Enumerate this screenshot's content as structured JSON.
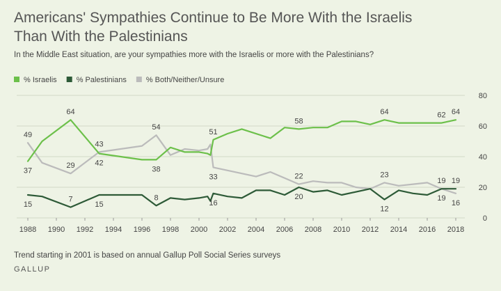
{
  "header": {
    "title_line1": "Americans' Sympathies Continue to Be More With the Israelis",
    "title_line2": "Than With the Palestinians",
    "subtitle": "In the Middle East situation, are your sympathies more with the Israelis or more with the Palestinians?"
  },
  "footer": {
    "note": "Trend starting in 2001 is based on annual Gallup Poll Social Series surveys",
    "brand": "GALLUP"
  },
  "colors": {
    "israelis": "#6cc04a",
    "palestinians": "#2d5a37",
    "both": "#bbbbbb",
    "grid": "#d2d8c8"
  },
  "chart_data": {
    "type": "line",
    "title": "Americans' Sympathies Continue to Be More With the Israelis Than With the Palestinians",
    "xlabel": "",
    "ylabel": "",
    "xlim": [
      1988,
      2018
    ],
    "ylim": [
      0,
      80
    ],
    "x_ticks": [
      "1988",
      "1990",
      "1992",
      "1994",
      "1996",
      "1998",
      "2000",
      "2002",
      "2004",
      "2006",
      "2008",
      "2010",
      "2012",
      "2014",
      "2016",
      "2018"
    ],
    "y_ticks": [
      "0",
      "20",
      "40",
      "60",
      "80"
    ],
    "legend_position": "top-left",
    "grid": true,
    "series": [
      {
        "name": "% Israelis",
        "color": "#6cc04a",
        "points": [
          [
            1988,
            37
          ],
          [
            1989,
            50
          ],
          [
            1991,
            64
          ],
          [
            1993,
            42
          ],
          [
            1996,
            38
          ],
          [
            1997,
            38
          ],
          [
            1998,
            46
          ],
          [
            1999,
            43
          ],
          [
            2000,
            43
          ],
          [
            2000.6,
            42
          ],
          [
            2000.8,
            41
          ],
          [
            2001,
            51
          ],
          [
            2002,
            55
          ],
          [
            2003,
            58
          ],
          [
            2005,
            52
          ],
          [
            2006,
            59
          ],
          [
            2007,
            58
          ],
          [
            2008,
            59
          ],
          [
            2009,
            59
          ],
          [
            2010,
            63
          ],
          [
            2011,
            63
          ],
          [
            2012,
            61
          ],
          [
            2013,
            64
          ],
          [
            2014,
            62
          ],
          [
            2015,
            62
          ],
          [
            2016,
            62
          ],
          [
            2017,
            62
          ],
          [
            2018,
            64
          ]
        ],
        "labels": [
          {
            "x": 1988,
            "y": 37,
            "text": "37",
            "pos": "below"
          },
          {
            "x": 1991,
            "y": 64,
            "text": "64",
            "pos": "above"
          },
          {
            "x": 1993,
            "y": 42,
            "text": "42",
            "pos": "below"
          },
          {
            "x": 1997,
            "y": 38,
            "text": "38",
            "pos": "below"
          },
          {
            "x": 2001,
            "y": 51,
            "text": "51",
            "pos": "above"
          },
          {
            "x": 2007,
            "y": 58,
            "text": "58",
            "pos": "above"
          },
          {
            "x": 2013,
            "y": 64,
            "text": "64",
            "pos": "above"
          },
          {
            "x": 2017,
            "y": 62,
            "text": "62",
            "pos": "above"
          },
          {
            "x": 2018,
            "y": 64,
            "text": "64",
            "pos": "above"
          }
        ]
      },
      {
        "name": "% Palestinians",
        "color": "#2d5a37",
        "points": [
          [
            1988,
            15
          ],
          [
            1989,
            14
          ],
          [
            1991,
            7
          ],
          [
            1993,
            15
          ],
          [
            1996,
            15
          ],
          [
            1997,
            8
          ],
          [
            1998,
            13
          ],
          [
            1999,
            12
          ],
          [
            2000,
            13
          ],
          [
            2000.6,
            14
          ],
          [
            2000.8,
            11
          ],
          [
            2001,
            16
          ],
          [
            2002,
            14
          ],
          [
            2003,
            13
          ],
          [
            2004,
            18
          ],
          [
            2005,
            18
          ],
          [
            2006,
            15
          ],
          [
            2007,
            20
          ],
          [
            2008,
            17
          ],
          [
            2009,
            18
          ],
          [
            2010,
            15
          ],
          [
            2012,
            19
          ],
          [
            2013,
            12
          ],
          [
            2014,
            18
          ],
          [
            2015,
            16
          ],
          [
            2016,
            15
          ],
          [
            2017,
            19
          ],
          [
            2018,
            19
          ]
        ],
        "labels": [
          {
            "x": 1988,
            "y": 15,
            "text": "15",
            "pos": "below"
          },
          {
            "x": 1991,
            "y": 7,
            "text": "7",
            "pos": "above"
          },
          {
            "x": 1993,
            "y": 15,
            "text": "15",
            "pos": "below"
          },
          {
            "x": 1997,
            "y": 8,
            "text": "8",
            "pos": "above"
          },
          {
            "x": 2001,
            "y": 16,
            "text": "16",
            "pos": "below"
          },
          {
            "x": 2007,
            "y": 20,
            "text": "20",
            "pos": "below"
          },
          {
            "x": 2013,
            "y": 12,
            "text": "12",
            "pos": "below"
          },
          {
            "x": 2017,
            "y": 19,
            "text": "19",
            "pos": "below"
          },
          {
            "x": 2018,
            "y": 19,
            "text": "19",
            "pos": "above"
          }
        ]
      },
      {
        "name": "% Both/Neither/Unsure",
        "color": "#bbbbbb",
        "points": [
          [
            1988,
            49
          ],
          [
            1989,
            36
          ],
          [
            1991,
            29
          ],
          [
            1993,
            43
          ],
          [
            1996,
            47
          ],
          [
            1997,
            54
          ],
          [
            1998,
            41
          ],
          [
            1999,
            45
          ],
          [
            2000,
            44
          ],
          [
            2000.6,
            45
          ],
          [
            2000.8,
            48
          ],
          [
            2001,
            33
          ],
          [
            2002,
            31
          ],
          [
            2003,
            29
          ],
          [
            2004,
            27
          ],
          [
            2005,
            30
          ],
          [
            2006,
            26
          ],
          [
            2007,
            22
          ],
          [
            2008,
            24
          ],
          [
            2009,
            23
          ],
          [
            2010,
            23
          ],
          [
            2011,
            20
          ],
          [
            2012,
            19
          ],
          [
            2013,
            23
          ],
          [
            2014,
            21
          ],
          [
            2015,
            22
          ],
          [
            2016,
            23
          ],
          [
            2017,
            19
          ],
          [
            2018,
            16
          ]
        ],
        "labels": [
          {
            "x": 1988,
            "y": 49,
            "text": "49",
            "pos": "above"
          },
          {
            "x": 1991,
            "y": 29,
            "text": "29",
            "pos": "above"
          },
          {
            "x": 1993,
            "y": 43,
            "text": "43",
            "pos": "above"
          },
          {
            "x": 1997,
            "y": 54,
            "text": "54",
            "pos": "above"
          },
          {
            "x": 2001,
            "y": 33,
            "text": "33",
            "pos": "below"
          },
          {
            "x": 2007,
            "y": 22,
            "text": "22",
            "pos": "above"
          },
          {
            "x": 2013,
            "y": 23,
            "text": "23",
            "pos": "above"
          },
          {
            "x": 2017,
            "y": 19,
            "text": "19",
            "pos": "above"
          },
          {
            "x": 2018,
            "y": 16,
            "text": "16",
            "pos": "below"
          }
        ]
      }
    ]
  }
}
